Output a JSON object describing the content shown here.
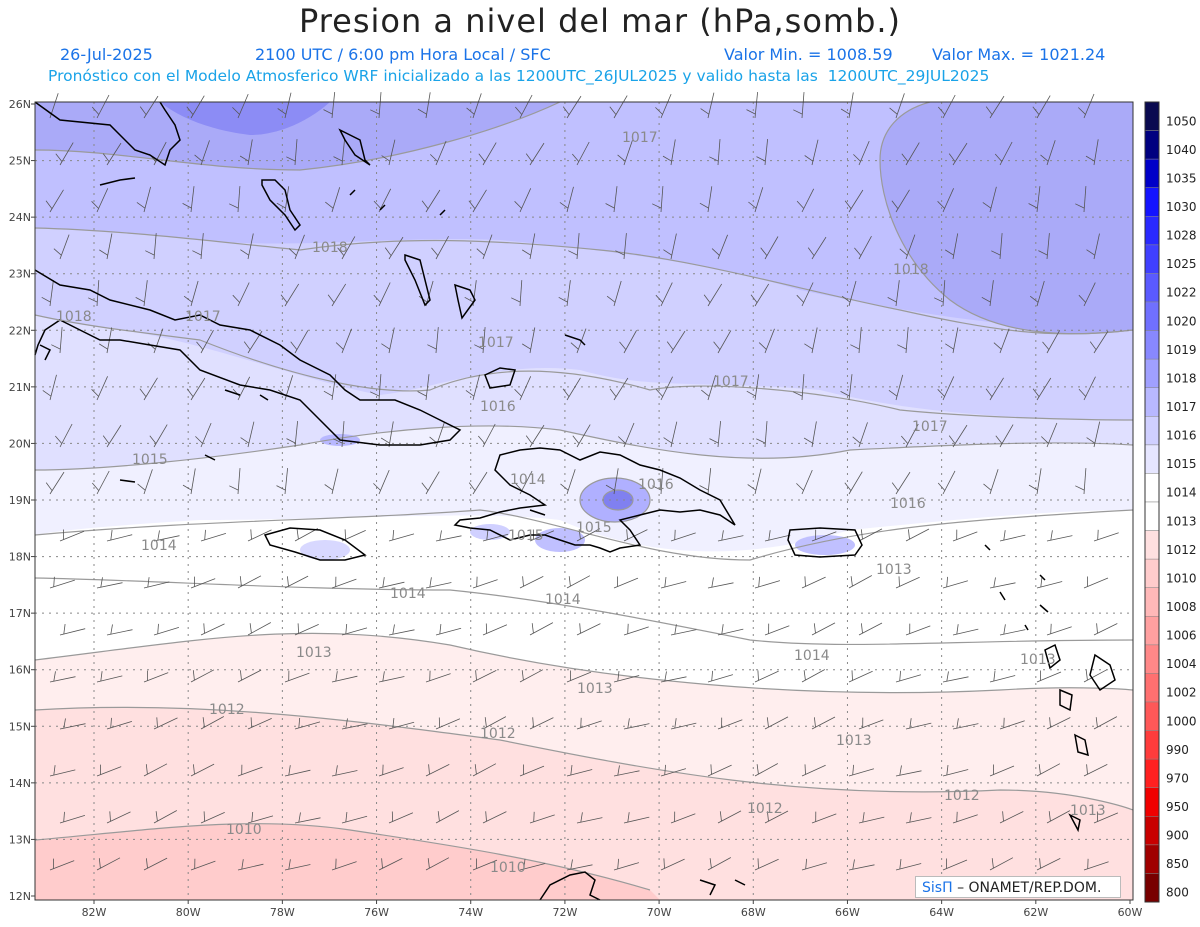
{
  "header": {
    "title": "Presion a nivel del mar (hPa,somb.)",
    "date": "26-Jul-2025",
    "time": "2100 UTC / 6:00 pm Hora Local / SFC",
    "min_label": "Valor Min. = 1008.59",
    "max_label": "Valor Max. = 1021.24",
    "forecast_line": "Pronóstico con el Modelo Atmosferico WRF inicializado a las 1200UTC_26JUL2025 y valido hasta las  1200UTC_29JUL2025"
  },
  "axes": {
    "lat_labels": [
      "26N",
      "25N",
      "24N",
      "23N",
      "22N",
      "21N",
      "20N",
      "19N",
      "18N",
      "17N",
      "16N",
      "15N",
      "14N",
      "13N",
      "12N"
    ],
    "lon_labels": [
      "82W",
      "80W",
      "78W",
      "76W",
      "74W",
      "72W",
      "70W",
      "68W",
      "66W",
      "64W",
      "62W",
      "60W"
    ]
  },
  "legend": {
    "levels": [
      "1050",
      "1040",
      "1035",
      "1030",
      "1028",
      "1025",
      "1022",
      "1020",
      "1019",
      "1018",
      "1017",
      "1016",
      "1015",
      "1014",
      "1013",
      "1012",
      "1010",
      "1008",
      "1006",
      "1004",
      "1002",
      "1000",
      "990",
      "970",
      "950",
      "900",
      "850",
      "800"
    ],
    "colors": [
      "#0a0a50",
      "#000080",
      "#0000c8",
      "#1414ff",
      "#2a2aff",
      "#4040ff",
      "#5a5aff",
      "#7070ff",
      "#8888ff",
      "#a0a0ff",
      "#b8b8ff",
      "#d0d0ff",
      "#e6e6ff",
      "#ffffff",
      "#ffffff",
      "#ffe0e0",
      "#ffcccc",
      "#ffb8b8",
      "#ffa0a0",
      "#ff8888",
      "#ff7070",
      "#ff5858",
      "#ff3c3c",
      "#ff2020",
      "#f00000",
      "#c80000",
      "#a00000",
      "#780000"
    ]
  },
  "contour_labels": [
    {
      "text": "1017"
    },
    {
      "text": "1018"
    },
    {
      "text": "1018"
    },
    {
      "text": "1018"
    },
    {
      "text": "1017"
    },
    {
      "text": "1017"
    },
    {
      "text": "1017"
    },
    {
      "text": "1016"
    },
    {
      "text": "1017"
    },
    {
      "text": "1015"
    },
    {
      "text": "1014"
    },
    {
      "text": "1016"
    },
    {
      "text": "1016"
    },
    {
      "text": "1015"
    },
    {
      "text": "1015"
    },
    {
      "text": "1014"
    },
    {
      "text": "1014"
    },
    {
      "text": "1014"
    },
    {
      "text": "1013"
    },
    {
      "text": "1014"
    },
    {
      "text": "1013"
    },
    {
      "text": "1013"
    },
    {
      "text": "1012"
    },
    {
      "text": "1012"
    },
    {
      "text": "1013"
    },
    {
      "text": "1012"
    },
    {
      "text": "1012"
    },
    {
      "text": "1013"
    },
    {
      "text": "1010"
    },
    {
      "text": "1010"
    },
    {
      "text": "1013"
    }
  ],
  "credit": {
    "sis": "SisΠ",
    "org": "– ONAMET/REP.DOM."
  }
}
